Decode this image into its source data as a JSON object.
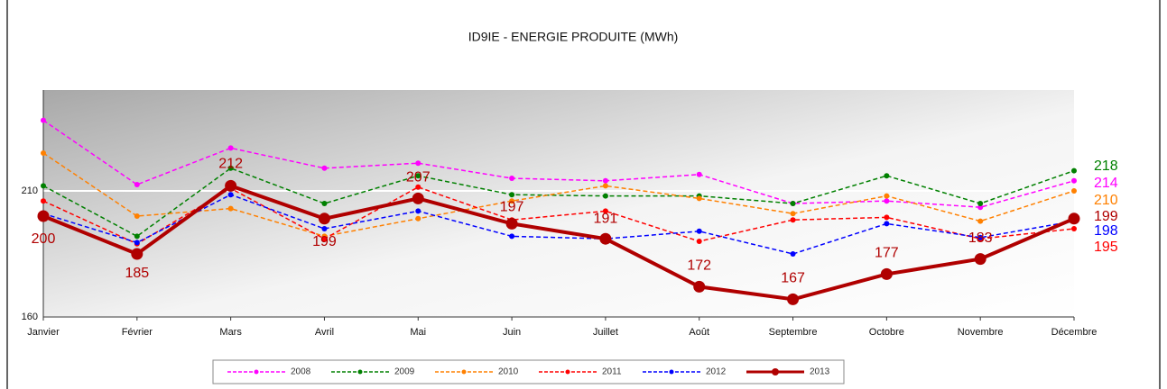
{
  "chart_data": {
    "type": "line",
    "title": "ID9IE - ENERGIE PRODUITE (MWh)",
    "categories": [
      "Janvier",
      "Février",
      "Mars",
      "Avril",
      "Mai",
      "Juin",
      "Juillet",
      "Août",
      "Septembre",
      "Octobre",
      "Novembre",
      "Décembre"
    ],
    "ylim": [
      160,
      250
    ],
    "yticks": [
      160,
      210
    ],
    "grid": true,
    "series": [
      {
        "name": "2008",
        "color": "#ff00ff",
        "values": [
          238,
          212.5,
          227,
          219,
          221,
          215,
          214,
          216.5,
          205,
          206,
          203.5,
          214
        ]
      },
      {
        "name": "2009",
        "color": "#008000",
        "values": [
          212,
          192,
          219,
          205,
          216,
          208.5,
          208,
          208,
          205,
          216,
          205,
          218
        ]
      },
      {
        "name": "2010",
        "color": "#ff8000",
        "values": [
          225,
          200,
          203,
          192,
          199,
          206,
          212,
          207,
          201,
          208,
          198,
          210
        ]
      },
      {
        "name": "2011",
        "color": "#ff0000",
        "values": [
          206,
          189,
          211,
          191,
          211.5,
          198.5,
          202,
          190,
          198.5,
          199.5,
          191,
          195
        ]
      },
      {
        "name": "2012",
        "color": "#0000ff",
        "values": [
          201,
          189.5,
          208.5,
          195,
          202,
          192,
          191,
          194,
          185,
          197,
          191.5,
          198
        ]
      },
      {
        "name": "2013",
        "color": "#b00000",
        "values": [
          200,
          185,
          212,
          199,
          207,
          197,
          191,
          172,
          167,
          177,
          183,
          199
        ]
      }
    ]
  }
}
